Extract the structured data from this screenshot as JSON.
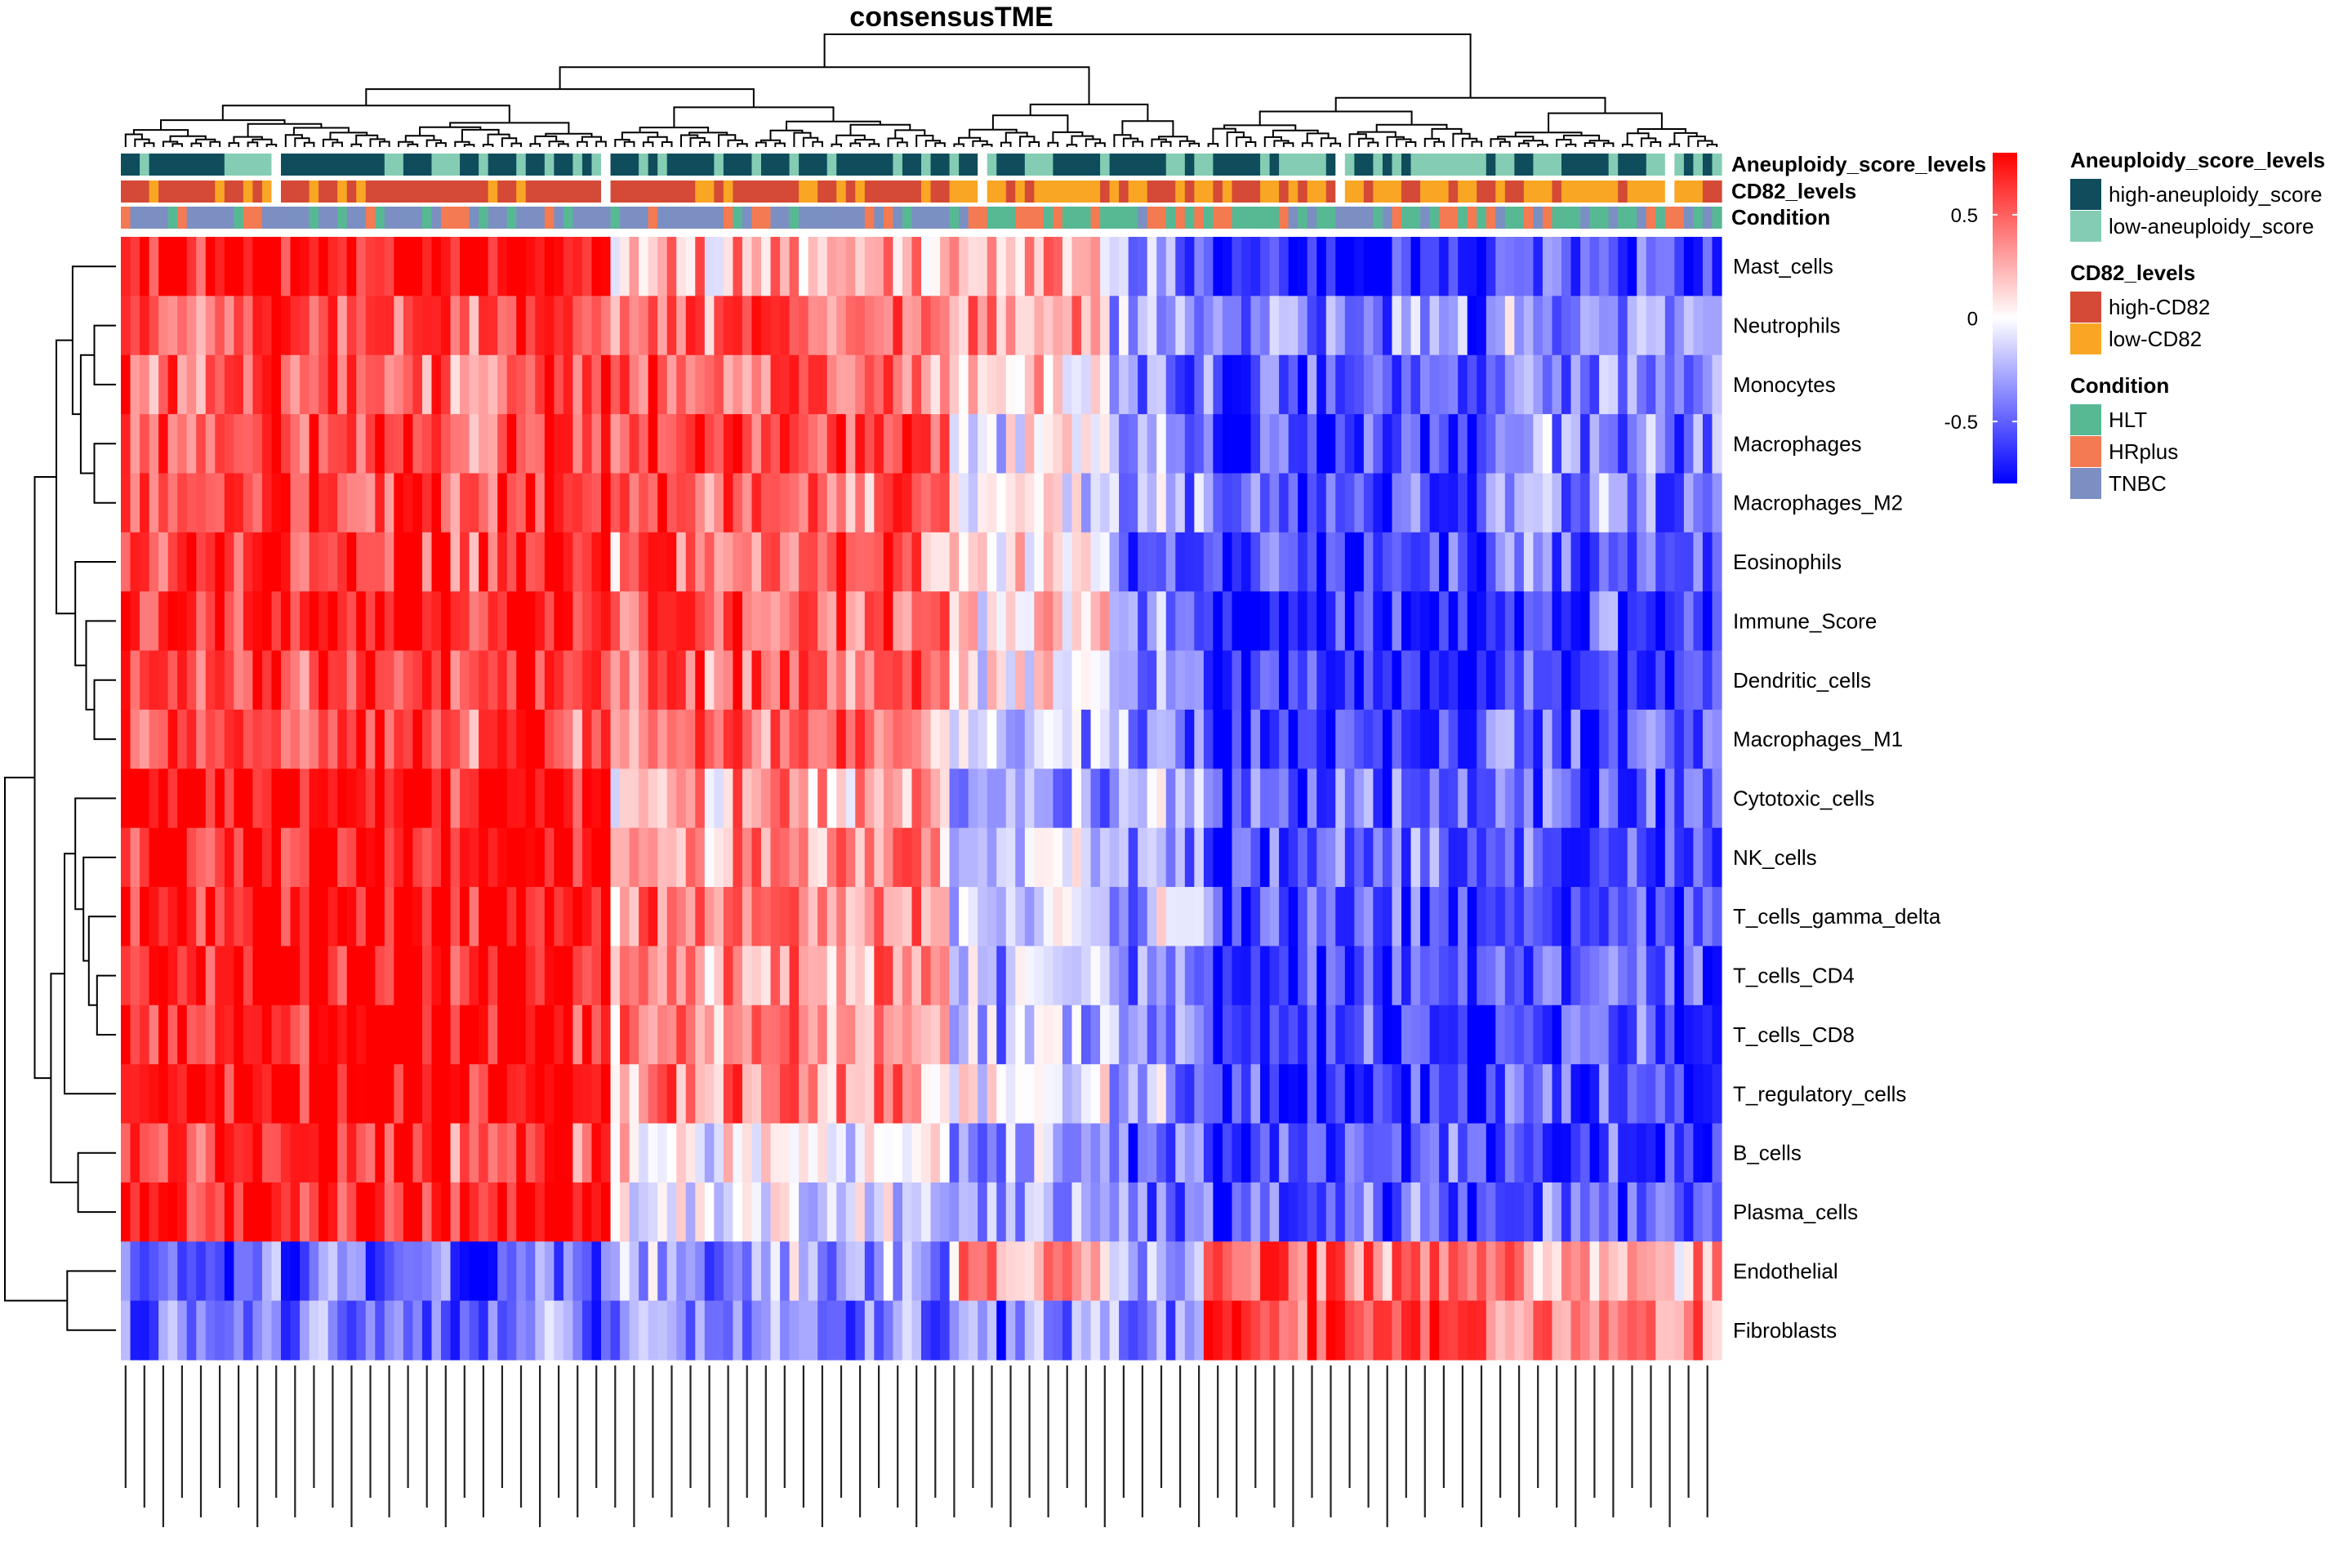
{
  "chart_data": {
    "type": "heatmap",
    "title": "consensusTME",
    "rows": [
      "Mast_cells",
      "Neutrophils",
      "Monocytes",
      "Macrophages",
      "Macrophages_M2",
      "Eosinophils",
      "Immune_Score",
      "Dendritic_cells",
      "Macrophages_M1",
      "Cytotoxic_cells",
      "NK_cells",
      "T_cells_gamma_delta",
      "T_cells_CD4",
      "T_cells_CD8",
      "T_regulatory_cells",
      "B_cells",
      "Plasma_cells",
      "Endothelial",
      "Fibroblasts"
    ],
    "n_columns": 170,
    "color_scale": {
      "low": -0.8,
      "mid": 0,
      "high": 0.8,
      "ticks": [
        0.5,
        0,
        -0.5
      ],
      "tick_labels": [
        "0.5",
        "0",
        "-0.5"
      ],
      "colors": [
        "#0000ff",
        "#ffffff",
        "#ff0000"
      ]
    },
    "annotations": [
      {
        "name": "Aneuploidy_score_levels",
        "levels": [
          {
            "label": "high-aneuploidy_score",
            "color": "#0f4c5c"
          },
          {
            "label": "low-aneuploidy_score",
            "color": "#84cdb4"
          }
        ]
      },
      {
        "name": "CD82_levels",
        "levels": [
          {
            "label": "high-CD82",
            "color": "#d44a36"
          },
          {
            "label": "low-CD82",
            "color": "#f9a624"
          }
        ]
      },
      {
        "name": "Condition",
        "levels": [
          {
            "label": "HLT",
            "color": "#57b894"
          },
          {
            "label": "HRplus",
            "color": "#f47a52"
          },
          {
            "label": "TNBC",
            "color": "#7b8fc2"
          }
        ]
      }
    ],
    "column_groups": [
      {
        "start": 0,
        "end": 52,
        "profile": [
          0.75,
          0.55,
          0.5,
          0.55,
          0.55,
          0.6,
          0.65,
          0.6,
          0.55,
          0.75,
          0.7,
          0.75,
          0.75,
          0.75,
          0.8,
          0.6,
          0.75,
          -0.55,
          -0.45
        ]
      },
      {
        "start": 52,
        "end": 88,
        "profile": [
          0.25,
          0.45,
          0.45,
          0.5,
          0.45,
          0.4,
          0.45,
          0.45,
          0.45,
          0.25,
          0.35,
          0.35,
          0.35,
          0.35,
          0.35,
          0.05,
          -0.15,
          -0.3,
          -0.35
        ]
      },
      {
        "start": 88,
        "end": 105,
        "profile": [
          0.2,
          0.35,
          0.1,
          0.0,
          0.0,
          0.1,
          0.1,
          0.0,
          -0.2,
          -0.35,
          -0.15,
          -0.15,
          -0.2,
          -0.2,
          -0.05,
          -0.3,
          -0.35,
          0.3,
          -0.4
        ]
      },
      {
        "start": 105,
        "end": 115,
        "profile": [
          -0.3,
          -0.3,
          -0.4,
          -0.3,
          -0.3,
          -0.4,
          -0.35,
          -0.35,
          -0.35,
          -0.25,
          -0.3,
          -0.2,
          -0.3,
          -0.3,
          -0.3,
          -0.45,
          -0.45,
          -0.2,
          -0.3
        ]
      },
      {
        "start": 115,
        "end": 145,
        "profile": [
          -0.75,
          -0.45,
          -0.55,
          -0.6,
          -0.6,
          -0.65,
          -0.7,
          -0.7,
          -0.65,
          -0.55,
          -0.55,
          -0.6,
          -0.65,
          -0.65,
          -0.65,
          -0.55,
          -0.55,
          0.45,
          0.55
        ]
      },
      {
        "start": 145,
        "end": 170,
        "profile": [
          -0.55,
          -0.3,
          -0.4,
          -0.35,
          -0.4,
          -0.45,
          -0.55,
          -0.55,
          -0.5,
          -0.55,
          -0.55,
          -0.55,
          -0.55,
          -0.55,
          -0.55,
          -0.6,
          -0.5,
          0.3,
          0.35
        ]
      }
    ],
    "legend_placement": "right"
  }
}
